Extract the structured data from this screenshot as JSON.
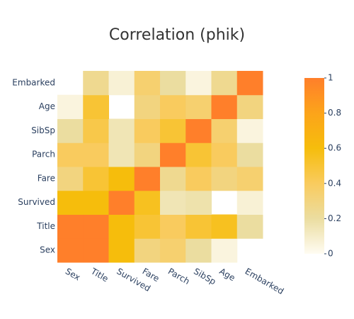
{
  "chart_data": {
    "type": "heatmap",
    "title": "Correlation (phik)",
    "x": [
      "Sex",
      "Title",
      "Survived",
      "Fare",
      "Parch",
      "SibSp",
      "Age",
      "Embarked"
    ],
    "y": [
      "Sex",
      "Title",
      "Survived",
      "Fare",
      "Parch",
      "SibSp",
      "Age",
      "Embarked"
    ],
    "z": [
      [
        1,
        1,
        0.6,
        0.3,
        0.35,
        0.2,
        0.05,
        null
      ],
      [
        1,
        1,
        0.6,
        0.5,
        0.4,
        0.5,
        0.55,
        0.2
      ],
      [
        0.6,
        0.6,
        1,
        0.55,
        0.15,
        0.17,
        null,
        0.07
      ],
      [
        0.3,
        0.5,
        0.6,
        1,
        0.25,
        0.4,
        0.3,
        0.35
      ],
      [
        0.4,
        0.4,
        0.15,
        0.3,
        1,
        0.5,
        0.4,
        0.2
      ],
      [
        0.2,
        0.45,
        0.15,
        0.4,
        0.5,
        1,
        0.35,
        0.05
      ],
      [
        0.05,
        0.5,
        null,
        0.3,
        0.4,
        0.35,
        1,
        0.3
      ],
      [
        null,
        0.25,
        0.07,
        0.35,
        0.2,
        0.05,
        0.25,
        1
      ]
    ],
    "zlim": [
      0,
      1
    ],
    "colorscale": [
      [
        0,
        "#fffcf2"
      ],
      [
        0.2,
        "#ebdda0"
      ],
      [
        0.4,
        "#f9cb5e"
      ],
      [
        0.6,
        "#f6bd0c"
      ],
      [
        0.8,
        "#fca41a"
      ],
      [
        1,
        "#ff7f2a"
      ]
    ],
    "colorbar_ticks": [
      0,
      0.2,
      0.4,
      0.6,
      0.8,
      1
    ]
  }
}
